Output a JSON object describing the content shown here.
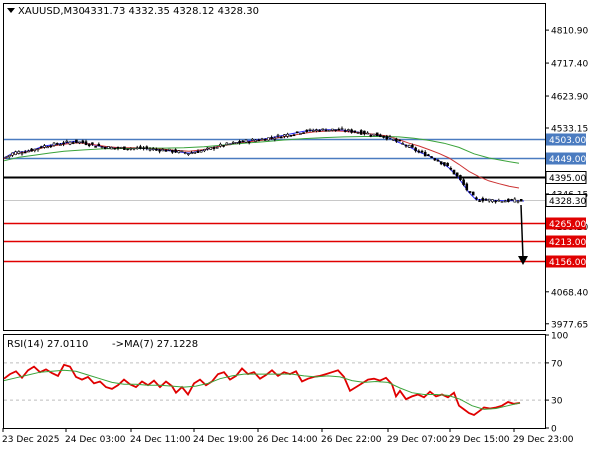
{
  "chart_data": [
    {
      "type": "candlestick",
      "title": "XAUUSD,M30",
      "ohlc_label": "4331.73 4332.35 4328.12 4328.30",
      "y_ticks": [
        "4810.90",
        "4717.40",
        "4623.90",
        "4533.15",
        "4346.15",
        "4253.20",
        "4068.40",
        "3977.65"
      ],
      "ylim": [
        3960,
        4885
      ],
      "current_price": "4328.30",
      "levels": [
        {
          "price": 4503.0,
          "label": "4503.00",
          "color": "#4a7bc0"
        },
        {
          "price": 4449.0,
          "label": "4449.00",
          "color": "#4a7bc0"
        },
        {
          "price": 4395.0,
          "label": "4395.00",
          "color": "#000000"
        },
        {
          "price": 4265.0,
          "label": "4265.00",
          "color": "#e00000"
        },
        {
          "price": 4213.0,
          "label": "4213.00",
          "color": "#e00000"
        },
        {
          "price": 4156.0,
          "label": "4156.00",
          "color": "#e00000"
        }
      ],
      "series": [
        {
          "color": "#2a2aff",
          "values": [
            [
              0,
              4448
            ],
            [
              10,
              4464
            ],
            [
              20,
              4466
            ],
            [
              30,
              4472
            ],
            [
              40,
              4482
            ],
            [
              50,
              4486
            ],
            [
              60,
              4490
            ],
            [
              70,
              4495
            ],
            [
              78,
              4492
            ],
            [
              88,
              4486
            ],
            [
              100,
              4479
            ],
            [
              112,
              4476
            ],
            [
              124,
              4476
            ],
            [
              140,
              4475
            ],
            [
              155,
              4472
            ],
            [
              170,
              4467
            ],
            [
              185,
              4462
            ],
            [
              200,
              4470
            ],
            [
              215,
              4482
            ],
            [
              230,
              4490
            ],
            [
              245,
              4497
            ],
            [
              260,
              4502
            ],
            [
              275,
              4510
            ],
            [
              290,
              4518
            ],
            [
              300,
              4524
            ],
            [
              310,
              4527
            ],
            [
              320,
              4528
            ],
            [
              330,
              4528
            ],
            [
              340,
              4527
            ],
            [
              350,
              4523
            ],
            [
              365,
              4517
            ],
            [
              375,
              4512
            ],
            [
              385,
              4505
            ],
            [
              395,
              4492
            ],
            [
              405,
              4480
            ],
            [
              415,
              4465
            ],
            [
              425,
              4454
            ],
            [
              435,
              4440
            ],
            [
              445,
              4420
            ],
            [
              455,
              4390
            ],
            [
              465,
              4350
            ],
            [
              472,
              4330
            ],
            [
              480,
              4330
            ],
            [
              490,
              4328
            ],
            [
              500,
              4327
            ],
            [
              510,
              4327
            ],
            [
              520,
              4326
            ]
          ]
        },
        {
          "color": "#cc3333",
          "values": [
            [
              0,
              4446
            ],
            [
              10,
              4460
            ],
            [
              20,
              4464
            ],
            [
              30,
              4470
            ],
            [
              40,
              4478
            ],
            [
              50,
              4483
            ],
            [
              60,
              4487
            ],
            [
              70,
              4491
            ],
            [
              80,
              4490
            ],
            [
              92,
              4485
            ],
            [
              104,
              4480
            ],
            [
              116,
              4477
            ],
            [
              128,
              4477
            ],
            [
              140,
              4476
            ],
            [
              155,
              4474
            ],
            [
              170,
              4470
            ],
            [
              185,
              4467
            ],
            [
              200,
              4472
            ],
            [
              215,
              4481
            ],
            [
              230,
              4488
            ],
            [
              245,
              4494
            ],
            [
              260,
              4499
            ],
            [
              275,
              4506
            ],
            [
              290,
              4513
            ],
            [
              300,
              4518
            ],
            [
              310,
              4522
            ],
            [
              320,
              4524
            ],
            [
              330,
              4525
            ],
            [
              340,
              4524
            ],
            [
              350,
              4521
            ],
            [
              365,
              4517
            ],
            [
              375,
              4514
            ],
            [
              385,
              4510
            ],
            [
              395,
              4500
            ],
            [
              405,
              4490
            ],
            [
              415,
              4482
            ],
            [
              425,
              4472
            ],
            [
              435,
              4461
            ],
            [
              445,
              4448
            ],
            [
              455,
              4430
            ],
            [
              465,
              4410
            ],
            [
              475,
              4395
            ],
            [
              485,
              4383
            ],
            [
              495,
              4375
            ],
            [
              505,
              4368
            ],
            [
              515,
              4363
            ]
          ]
        },
        {
          "color": "#3aa33a",
          "values": [
            [
              0,
              4440
            ],
            [
              15,
              4450
            ],
            [
              30,
              4456
            ],
            [
              45,
              4462
            ],
            [
              60,
              4467
            ],
            [
              80,
              4471
            ],
            [
              100,
              4474
            ],
            [
              120,
              4475
            ],
            [
              140,
              4476
            ],
            [
              160,
              4476
            ],
            [
              180,
              4477
            ],
            [
              200,
              4480
            ],
            [
              220,
              4485
            ],
            [
              240,
              4490
            ],
            [
              260,
              4494
            ],
            [
              280,
              4499
            ],
            [
              300,
              4503
            ],
            [
              320,
              4506
            ],
            [
              340,
              4508
            ],
            [
              360,
              4509
            ],
            [
              380,
              4509
            ],
            [
              395,
              4508
            ],
            [
              410,
              4504
            ],
            [
              425,
              4498
            ],
            [
              440,
              4490
            ],
            [
              455,
              4478
            ],
            [
              470,
              4460
            ],
            [
              485,
              4448
            ],
            [
              500,
              4440
            ],
            [
              515,
              4433
            ]
          ]
        }
      ]
    },
    {
      "type": "line",
      "title": "RSI(14) 27.0110",
      "subtitle": "->MA(7) 27.1228",
      "y_ticks": [
        "100",
        "70",
        "30",
        "0"
      ],
      "ylim": [
        0,
        100
      ],
      "x_ticks": [
        "23 Dec 2025",
        "24 Dec 03:00",
        "24 Dec 11:00",
        "24 Dec 19:00",
        "26 Dec 14:00",
        "26 Dec 22:00",
        "29 Dec 07:00",
        "29 Dec 15:00",
        "29 Dec 23:00"
      ],
      "series": [
        {
          "color": "#e00000",
          "values": [
            [
              0,
              53
            ],
            [
              6,
              58
            ],
            [
              12,
              61
            ],
            [
              18,
              54
            ],
            [
              24,
              62
            ],
            [
              30,
              66
            ],
            [
              36,
              60
            ],
            [
              42,
              63
            ],
            [
              48,
              59
            ],
            [
              54,
              56
            ],
            [
              60,
              68
            ],
            [
              66,
              66
            ],
            [
              72,
              55
            ],
            [
              78,
              52
            ],
            [
              84,
              55
            ],
            [
              90,
              48
            ],
            [
              96,
              50
            ],
            [
              102,
              44
            ],
            [
              108,
              42
            ],
            [
              114,
              46
            ],
            [
              120,
              52
            ],
            [
              126,
              47
            ],
            [
              132,
              44
            ],
            [
              138,
              50
            ],
            [
              144,
              46
            ],
            [
              150,
              51
            ],
            [
              156,
              44
            ],
            [
              162,
              50
            ],
            [
              168,
              45
            ],
            [
              172,
              38
            ],
            [
              178,
              44
            ],
            [
              184,
              36
            ],
            [
              190,
              48
            ],
            [
              196,
              52
            ],
            [
              202,
              46
            ],
            [
              208,
              50
            ],
            [
              214,
              58
            ],
            [
              220,
              60
            ],
            [
              226,
              52
            ],
            [
              232,
              56
            ],
            [
              238,
              64
            ],
            [
              244,
              58
            ],
            [
              250,
              60
            ],
            [
              256,
              53
            ],
            [
              262,
              57
            ],
            [
              268,
              62
            ],
            [
              274,
              56
            ],
            [
              280,
              60
            ],
            [
              286,
              58
            ],
            [
              292,
              61
            ],
            [
              298,
              50
            ],
            [
              304,
              53
            ],
            [
              310,
              55
            ],
            [
              316,
              56
            ],
            [
              322,
              58
            ],
            [
              328,
              60
            ],
            [
              334,
              62
            ],
            [
              340,
              55
            ],
            [
              346,
              40
            ],
            [
              352,
              44
            ],
            [
              358,
              48
            ],
            [
              364,
              52
            ],
            [
              370,
              53
            ],
            [
              376,
              51
            ],
            [
              382,
              54
            ],
            [
              388,
              47
            ],
            [
              392,
              34
            ],
            [
              396,
              40
            ],
            [
              402,
              31
            ],
            [
              408,
              34
            ],
            [
              414,
              36
            ],
            [
              420,
              33
            ],
            [
              426,
              39
            ],
            [
              432,
              34
            ],
            [
              438,
              36
            ],
            [
              444,
              33
            ],
            [
              450,
              38
            ],
            [
              455,
              24
            ],
            [
              460,
              20
            ],
            [
              465,
              16
            ],
            [
              470,
              14
            ],
            [
              475,
              18
            ],
            [
              480,
              22
            ],
            [
              486,
              21
            ],
            [
              492,
              22
            ],
            [
              498,
              24
            ],
            [
              504,
              28
            ],
            [
              510,
              26
            ],
            [
              516,
              27
            ]
          ]
        },
        {
          "color": "#3aa33a",
          "values": [
            [
              0,
              51
            ],
            [
              12,
              54
            ],
            [
              24,
              57
            ],
            [
              36,
              60
            ],
            [
              48,
              61
            ],
            [
              60,
              62
            ],
            [
              72,
              61
            ],
            [
              84,
              57
            ],
            [
              96,
              53
            ],
            [
              108,
              49
            ],
            [
              120,
              47
            ],
            [
              132,
              47
            ],
            [
              144,
              46
            ],
            [
              156,
              46
            ],
            [
              168,
              45
            ],
            [
              180,
              44
            ],
            [
              192,
              45
            ],
            [
              204,
              48
            ],
            [
              216,
              53
            ],
            [
              228,
              56
            ],
            [
              240,
              58
            ],
            [
              252,
              58
            ],
            [
              264,
              58
            ],
            [
              276,
              58
            ],
            [
              288,
              58
            ],
            [
              300,
              56
            ],
            [
              312,
              55
            ],
            [
              324,
              56
            ],
            [
              336,
              55
            ],
            [
              348,
              51
            ],
            [
              360,
              49
            ],
            [
              372,
              50
            ],
            [
              384,
              49
            ],
            [
              396,
              43
            ],
            [
              408,
              38
            ],
            [
              420,
              36
            ],
            [
              432,
              36
            ],
            [
              444,
              35
            ],
            [
              456,
              31
            ],
            [
              468,
              24
            ],
            [
              480,
              20
            ],
            [
              492,
              21
            ],
            [
              504,
              24
            ],
            [
              516,
              27
            ]
          ]
        }
      ]
    }
  ]
}
